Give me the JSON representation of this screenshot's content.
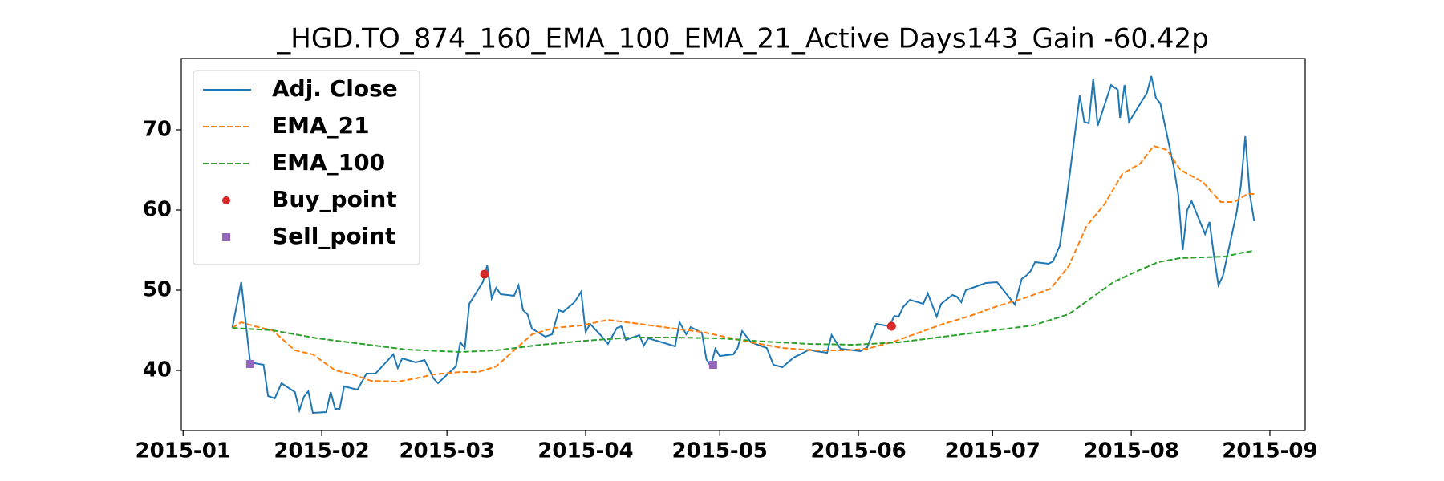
{
  "chart_data": {
    "type": "line",
    "title": "_HGD.TO_874_160_EMA_100_EMA_21_Active Days143_Gain -60.42p",
    "xlim": [
      -0.4,
      250.9
    ],
    "ylim": [
      32.5,
      78.9
    ],
    "xticks": [
      {
        "value": 0,
        "label": "2015-01"
      },
      {
        "value": 31,
        "label": "2015-02"
      },
      {
        "value": 59,
        "label": "2015-03"
      },
      {
        "value": 90,
        "label": "2015-04"
      },
      {
        "value": 120,
        "label": "2015-05"
      },
      {
        "value": 151,
        "label": "2015-06"
      },
      {
        "value": 181,
        "label": "2015-07"
      },
      {
        "value": 212,
        "label": "2015-08"
      },
      {
        "value": 243,
        "label": "2015-09"
      }
    ],
    "yticks": [
      40,
      50,
      60,
      70
    ],
    "legend": "upper left",
    "series": [
      {
        "name": "Adj. Close",
        "color": "#1f77b4",
        "style": "solid",
        "x": [
          11,
          13,
          15,
          18,
          19,
          20.5,
          22,
          25,
          26,
          27,
          28,
          29,
          32,
          33,
          34,
          35,
          36,
          39,
          41,
          43,
          47,
          48,
          49,
          52,
          54,
          56,
          57,
          61,
          62,
          63,
          64,
          67,
          68,
          69,
          70,
          71,
          74,
          75,
          76,
          77,
          78,
          81,
          82.5,
          84,
          85,
          87.5,
          89,
          90,
          91,
          94,
          95,
          97,
          98,
          99,
          102,
          103,
          104,
          106.5,
          110,
          111,
          112.5,
          113.5,
          116,
          117,
          118,
          119,
          120,
          123,
          124,
          125,
          127,
          130.5,
          132,
          134,
          136.5,
          138,
          140,
          141.5,
          144,
          145,
          147,
          151.5,
          153,
          155,
          157,
          158,
          159,
          160,
          161,
          162.5,
          165.5,
          166.5,
          168.5,
          169.5,
          172,
          173,
          174,
          175,
          176.5,
          179.5,
          182,
          186,
          187.5,
          188.5,
          189.5,
          190.5,
          193.5,
          194.5,
          195.5,
          196,
          197.5,
          200.5,
          201.5,
          202.5,
          203.5,
          204.5,
          207.5,
          209,
          209.5,
          210.5,
          211.5,
          215.5,
          216.5,
          217.5,
          218.5,
          221.5,
          222.5,
          223.5,
          224.5,
          225.5,
          228.5,
          229.5,
          230.5,
          231.5,
          232.5,
          235.5,
          236.5,
          237.5,
          238.5,
          239.5
        ],
        "values": [
          45.3,
          51,
          41,
          40.7,
          36.8,
          36.5,
          38.4,
          37.3,
          35,
          36.7,
          37.4,
          34.7,
          34.8,
          37.3,
          35.2,
          35.2,
          38,
          37.6,
          39.6,
          39.6,
          42,
          40.3,
          41.5,
          41,
          41.3,
          39,
          38.4,
          40.5,
          43.5,
          42.8,
          48.3,
          51,
          53.1,
          49,
          50.3,
          49.5,
          49.3,
          50.6,
          47.5,
          47,
          45.2,
          44.2,
          44.5,
          47.5,
          47.3,
          48.5,
          49.8,
          44.8,
          45.8,
          44,
          43.3,
          45.3,
          45.5,
          43.8,
          44.4,
          43.1,
          44,
          43.6,
          43,
          46,
          44.5,
          45.4,
          44.7,
          41.4,
          40.5,
          42.7,
          41.8,
          42,
          42.8,
          44.9,
          43.5,
          42.8,
          40.7,
          40.4,
          41.6,
          42,
          42.6,
          42.4,
          42.2,
          44.4,
          42.7,
          42.4,
          42.9,
          45.8,
          45.6,
          45.5,
          46.8,
          46.7,
          47.9,
          48.8,
          48.3,
          49.6,
          46.7,
          48.3,
          49.4,
          49.2,
          48.5,
          50,
          50.3,
          50.9,
          51,
          48.2,
          51.4,
          51.8,
          52.4,
          53.5,
          53.3,
          53.6,
          54.9,
          55.5,
          61.2,
          74.3,
          71,
          70.8,
          76.4,
          70.5,
          75.6,
          75,
          71.5,
          75.6,
          71,
          74.6,
          76.7,
          74,
          73.3,
          65.4,
          62,
          55,
          60,
          61.1,
          57,
          58.5,
          54.3,
          50.6,
          51.8,
          59.5,
          63,
          69.2,
          62,
          58.6
        ]
      },
      {
        "name": "EMA_21",
        "color": "#ff7f0e",
        "style": "dashed",
        "x": [
          11,
          13,
          16,
          20,
          25,
          29,
          34,
          38,
          42,
          48,
          52,
          56,
          62,
          66,
          70,
          74,
          78,
          83,
          89,
          95,
          102,
          110,
          116,
          121,
          127,
          134,
          141,
          148,
          153,
          159,
          165,
          170,
          176,
          182,
          188,
          194,
          198,
          202,
          206,
          210,
          214,
          217,
          220,
          223,
          228,
          232,
          235,
          238,
          239.5
        ],
        "values": [
          45.3,
          46,
          45.5,
          45,
          42.5,
          42,
          40,
          39.5,
          38.7,
          38.6,
          39,
          39.5,
          39.8,
          39.8,
          40.5,
          42.5,
          44.5,
          45.3,
          45.6,
          46.3,
          45.8,
          45.2,
          44.8,
          44.2,
          43.5,
          42.8,
          42.5,
          42.5,
          42.7,
          43.6,
          44.8,
          45.8,
          46.8,
          48,
          49,
          50.2,
          53,
          58,
          60.7,
          64.5,
          65.8,
          68,
          67.5,
          65,
          63.5,
          61,
          61,
          62,
          62
        ]
      },
      {
        "name": "EMA_100",
        "color": "#2ca02c",
        "style": "dashed",
        "x": [
          11,
          20,
          30,
          40,
          50,
          62,
          70,
          80,
          90,
          100,
          110,
          120,
          130,
          140,
          150,
          160,
          170,
          180,
          190,
          198,
          203,
          208,
          213,
          218,
          223,
          228,
          233,
          237,
          239.5
        ],
        "values": [
          45.3,
          45,
          44,
          43.3,
          42.6,
          42.3,
          42.5,
          43.2,
          43.7,
          44.1,
          44.1,
          44,
          43.6,
          43.3,
          43.2,
          43.5,
          44.2,
          44.9,
          45.6,
          47,
          49,
          51,
          52.3,
          53.5,
          54,
          54.1,
          54.2,
          54.7,
          54.9
        ]
      },
      {
        "name": "Buy_point",
        "color": "#d62728",
        "style": "marker",
        "marker": "circle",
        "x": [
          67.4,
          158.4
        ],
        "values": [
          52,
          45.5
        ]
      },
      {
        "name": "Sell_point",
        "color": "#9467bd",
        "style": "marker",
        "marker": "square",
        "x": [
          15,
          118.5
        ],
        "values": [
          40.8,
          40.7
        ]
      }
    ]
  }
}
